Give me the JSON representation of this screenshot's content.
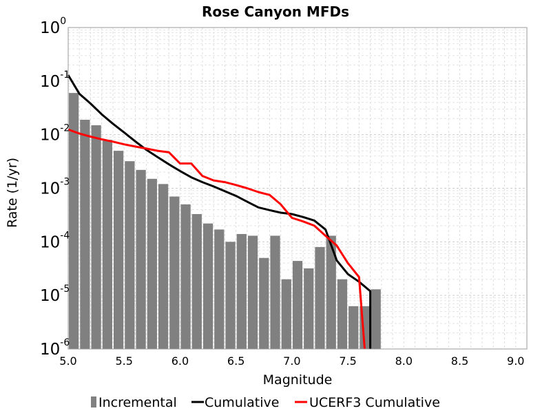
{
  "chart_data": {
    "type": "bar+line",
    "title": "Rose Canyon MFDs",
    "xlabel": "Magnitude",
    "ylabel": "Rate (1/yr)",
    "xlim": [
      5.0,
      9.1
    ],
    "ylim": [
      1e-06,
      1
    ],
    "y_scale": "log",
    "grid": true,
    "legend_position": "bottom",
    "x_ticks": [
      "5.0",
      "5.5",
      "6.0",
      "6.5",
      "7.0",
      "7.5",
      "8.0",
      "8.5",
      "9.0"
    ],
    "y_ticks": [
      {
        "base": "10",
        "exp": "0"
      },
      {
        "base": "10",
        "exp": "-1"
      },
      {
        "base": "10",
        "exp": "-2"
      },
      {
        "base": "10",
        "exp": "-3"
      },
      {
        "base": "10",
        "exp": "-4"
      },
      {
        "base": "10",
        "exp": "-5"
      },
      {
        "base": "10",
        "exp": "-6"
      }
    ],
    "series": [
      {
        "name": "Incremental",
        "kind": "bar",
        "color": "#808080",
        "x": [
          5.05,
          5.15,
          5.25,
          5.35,
          5.45,
          5.55,
          5.65,
          5.75,
          5.85,
          5.95,
          6.05,
          6.15,
          6.25,
          6.35,
          6.45,
          6.55,
          6.65,
          6.75,
          6.85,
          6.95,
          7.05,
          7.15,
          7.25,
          7.35,
          7.45,
          7.55,
          7.65,
          7.75
        ],
        "y": [
          0.06,
          0.019,
          0.015,
          0.008,
          0.005,
          0.0032,
          0.0022,
          0.0015,
          0.0012,
          0.0007,
          0.0005,
          0.00033,
          0.00022,
          0.00017,
          0.0001,
          0.00014,
          0.00013,
          5e-05,
          0.00013,
          2e-05,
          4.4e-05,
          3.2e-05,
          8e-05,
          0.00013,
          2e-05,
          6.3e-06,
          6.3e-06,
          1.3e-05
        ]
      },
      {
        "name": "Cumulative",
        "kind": "line",
        "color": "#000000",
        "x": [
          5.0,
          5.1,
          5.2,
          5.3,
          5.4,
          5.5,
          5.6,
          5.7,
          5.8,
          5.9,
          6.0,
          6.1,
          6.2,
          6.3,
          6.4,
          6.5,
          6.6,
          6.7,
          6.8,
          6.9,
          7.0,
          7.1,
          7.2,
          7.3,
          7.4,
          7.5,
          7.6,
          7.7,
          7.7
        ],
        "y": [
          0.13,
          0.058,
          0.038,
          0.024,
          0.016,
          0.011,
          0.0075,
          0.0052,
          0.0038,
          0.0028,
          0.0021,
          0.0016,
          0.0013,
          0.00108,
          0.00088,
          0.00072,
          0.00056,
          0.00044,
          0.00039,
          0.00035,
          0.00033,
          0.00029,
          0.00025,
          0.00017,
          4.5e-05,
          2.5e-05,
          1.8e-05,
          1.2e-05,
          1e-06
        ]
      },
      {
        "name": "UCERF3 Cumulative",
        "kind": "line",
        "color": "#ff0000",
        "x": [
          5.0,
          5.1,
          5.2,
          5.3,
          5.4,
          5.5,
          5.6,
          5.7,
          5.8,
          5.9,
          6.0,
          6.1,
          6.2,
          6.3,
          6.4,
          6.5,
          6.6,
          6.7,
          6.8,
          6.9,
          7.0,
          7.1,
          7.2,
          7.3,
          7.4,
          7.5,
          7.6,
          7.65
        ],
        "y": [
          0.0125,
          0.0105,
          0.0092,
          0.0082,
          0.0074,
          0.0066,
          0.006,
          0.0055,
          0.005,
          0.0047,
          0.0029,
          0.0029,
          0.0017,
          0.0014,
          0.0013,
          0.00115,
          0.001,
          0.00085,
          0.00075,
          0.0005,
          0.00028,
          0.00024,
          0.0002,
          0.00013,
          8.5e-05,
          4e-05,
          2.2e-05,
          1e-06
        ]
      }
    ]
  }
}
